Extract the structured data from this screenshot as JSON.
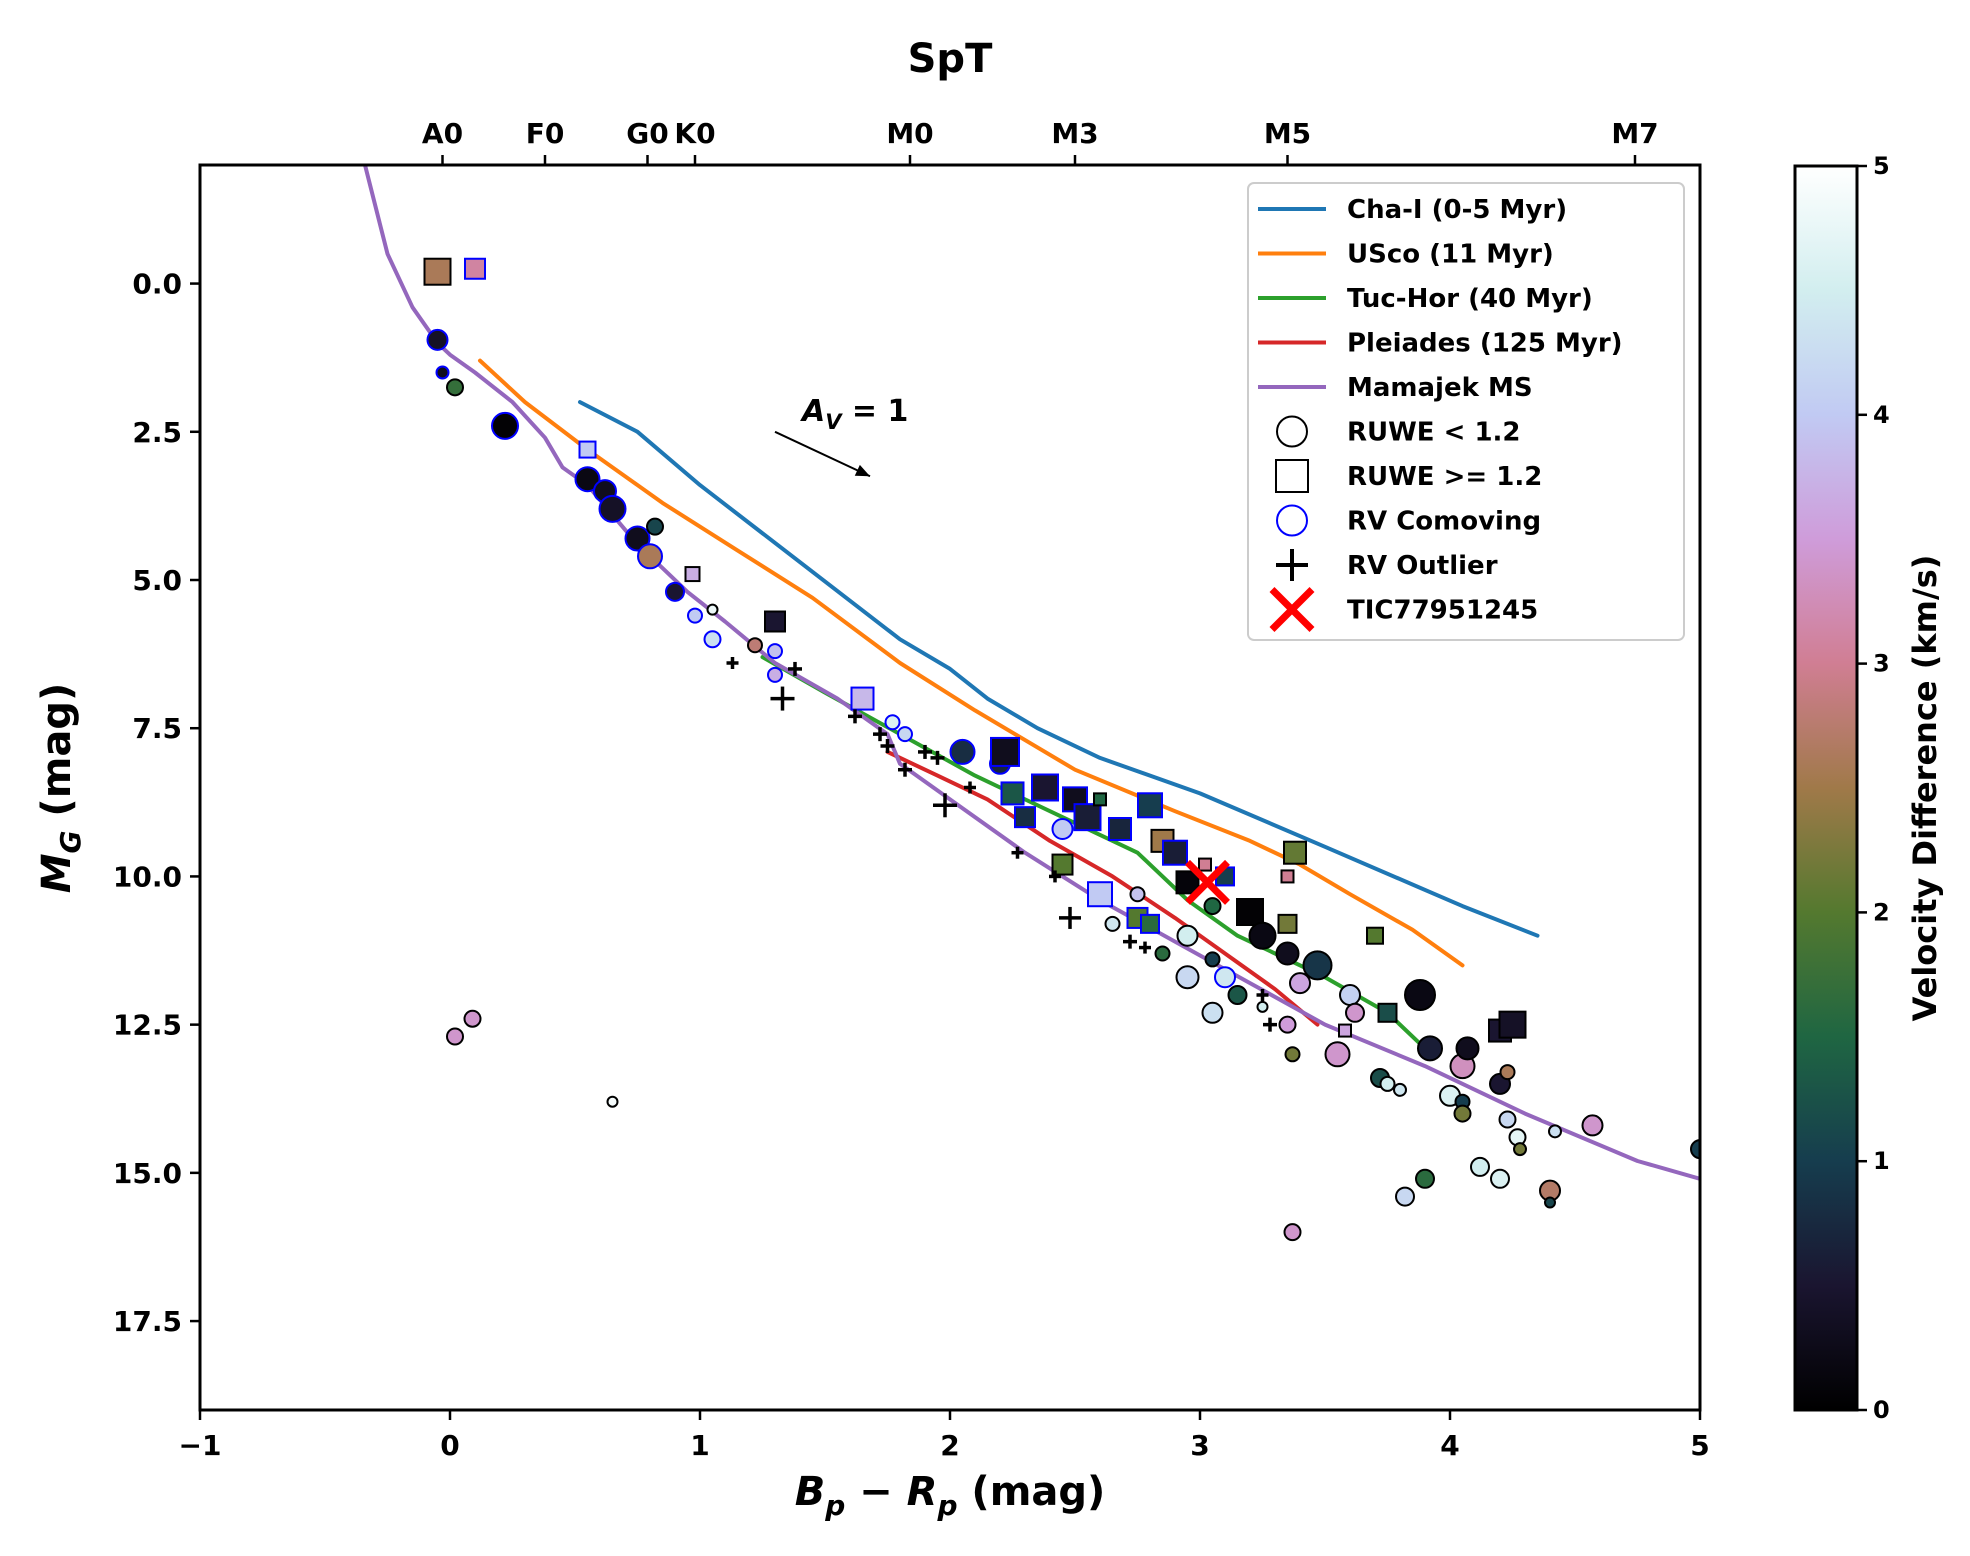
{
  "chart_data": {
    "type": "scatter",
    "xlabel": "B_p − R_p (mag)",
    "ylabel": "M_G (mag)",
    "top_axis_title": "SpT",
    "xlim": [
      -1,
      5
    ],
    "ylim": [
      19,
      -2
    ],
    "x_ticks": [
      -1,
      0,
      1,
      2,
      3,
      4,
      5
    ],
    "x_tick_labels": [
      "−1",
      "0",
      "1",
      "2",
      "3",
      "4",
      "5"
    ],
    "y_ticks": [
      0,
      2.5,
      5,
      7.5,
      10,
      12.5,
      15,
      17.5
    ],
    "y_tick_labels": [
      "0.0",
      "2.5",
      "5.0",
      "7.5",
      "10.0",
      "12.5",
      "15.0",
      "17.5"
    ],
    "spt_ticks": [
      {
        "label": "A0",
        "x": -0.03
      },
      {
        "label": "F0",
        "x": 0.38
      },
      {
        "label": "G0",
        "x": 0.79
      },
      {
        "label": "K0",
        "x": 0.98
      },
      {
        "label": "M0",
        "x": 1.84
      },
      {
        "label": "M3",
        "x": 2.5
      },
      {
        "label": "M5",
        "x": 3.35
      },
      {
        "label": "M7",
        "x": 4.74
      }
    ],
    "colorbar": {
      "label": "Velocity Difference (km/s)",
      "min": 0,
      "max": 5,
      "ticks": [
        0,
        1,
        2,
        3,
        4,
        5
      ],
      "tick_labels": [
        "0",
        "1",
        "2",
        "3",
        "4",
        "5"
      ]
    },
    "series": [
      {
        "name": "Cha-I (0-5 Myr)",
        "color": "#1f77b4",
        "x": [
          0.52,
          0.75,
          1.0,
          1.4,
          1.8,
          2.0,
          2.15,
          2.35,
          2.6,
          3.0,
          3.5,
          4.05,
          4.35
        ],
        "y": [
          2.0,
          2.5,
          3.4,
          4.7,
          6.0,
          6.5,
          7.0,
          7.5,
          8.0,
          8.6,
          9.5,
          10.5,
          11.0
        ]
      },
      {
        "name": "USco (11 Myr)",
        "color": "#ff7f0e",
        "x": [
          0.12,
          0.3,
          0.55,
          0.85,
          1.15,
          1.45,
          1.8,
          2.1,
          2.5,
          2.9,
          3.2,
          3.4,
          3.6,
          3.85,
          4.05
        ],
        "y": [
          1.3,
          2.0,
          2.8,
          3.7,
          4.5,
          5.3,
          6.4,
          7.2,
          8.2,
          8.9,
          9.4,
          9.8,
          10.3,
          10.9,
          11.5
        ]
      },
      {
        "name": "Tuc-Hor (40 Myr)",
        "color": "#2ca02c",
        "x": [
          1.25,
          1.5,
          1.8,
          2.1,
          2.5,
          2.75,
          2.95,
          3.15,
          3.5,
          3.75,
          3.9
        ],
        "y": [
          6.3,
          6.9,
          7.6,
          8.3,
          9.1,
          9.6,
          10.4,
          11.0,
          11.7,
          12.3,
          12.9
        ]
      },
      {
        "name": "Pleiades (125 Myr)",
        "color": "#d62728",
        "x": [
          1.75,
          1.95,
          2.15,
          2.4,
          2.65,
          2.9,
          3.1,
          3.3,
          3.47
        ],
        "y": [
          7.9,
          8.3,
          8.7,
          9.4,
          10.0,
          10.7,
          11.3,
          11.9,
          12.5
        ]
      },
      {
        "name": "Mamajek MS",
        "color": "#9467bd",
        "x": [
          -0.34,
          -0.25,
          -0.15,
          -0.05,
          0.0,
          0.1,
          0.25,
          0.38,
          0.45,
          0.55,
          0.65,
          0.75,
          0.85,
          0.95,
          1.1,
          1.3,
          1.55,
          1.75,
          1.8,
          2.0,
          2.3,
          2.6,
          2.9,
          3.2,
          3.5,
          3.9,
          4.3,
          4.75,
          5.0
        ],
        "y": [
          -2.0,
          -0.5,
          0.4,
          1.0,
          1.2,
          1.5,
          2.0,
          2.6,
          3.1,
          3.4,
          3.9,
          4.4,
          4.8,
          5.2,
          5.7,
          6.4,
          7.0,
          7.6,
          8.1,
          8.7,
          9.6,
          10.4,
          11.1,
          11.8,
          12.5,
          13.2,
          14.0,
          14.8,
          15.1
        ]
      }
    ],
    "points": [
      {
        "x": -0.05,
        "y": -0.2,
        "m": "s",
        "v": 2.6,
        "s": 26
      },
      {
        "x": 0.1,
        "y": -0.25,
        "m": "s",
        "v": 3.1,
        "s": 20,
        "rv": true
      },
      {
        "x": -0.05,
        "y": 0.95,
        "m": "o",
        "v": 0.4,
        "s": 20,
        "rv": true
      },
      {
        "x": -0.03,
        "y": 1.5,
        "m": "o",
        "v": 0.3,
        "s": 12,
        "rv": true
      },
      {
        "x": 0.02,
        "y": 1.75,
        "m": "o",
        "v": 1.7,
        "s": 16
      },
      {
        "x": 0.22,
        "y": 2.4,
        "m": "o",
        "v": 0.05,
        "s": 26,
        "rv": true
      },
      {
        "x": 0.55,
        "y": 2.8,
        "m": "s",
        "v": 4.0,
        "s": 16,
        "rv": true
      },
      {
        "x": 0.55,
        "y": 3.3,
        "m": "o",
        "v": 0.2,
        "s": 24,
        "rv": true
      },
      {
        "x": 0.62,
        "y": 3.5,
        "m": "o",
        "v": 0.3,
        "s": 22,
        "rv": true
      },
      {
        "x": 0.65,
        "y": 3.8,
        "m": "o",
        "v": 0.4,
        "s": 26,
        "rv": true
      },
      {
        "x": 0.75,
        "y": 4.3,
        "m": "o",
        "v": 0.3,
        "s": 24,
        "rv": true
      },
      {
        "x": 0.82,
        "y": 4.1,
        "m": "o",
        "v": 1.1,
        "s": 16
      },
      {
        "x": 0.8,
        "y": 4.6,
        "m": "o",
        "v": 2.6,
        "s": 24,
        "rv": true
      },
      {
        "x": 0.9,
        "y": 5.2,
        "m": "o",
        "v": 0.5,
        "s": 18,
        "rv": true
      },
      {
        "x": 0.97,
        "y": 4.9,
        "m": "s",
        "v": 3.7,
        "s": 14
      },
      {
        "x": 0.98,
        "y": 5.6,
        "m": "o",
        "v": 4.0,
        "s": 14,
        "rv": true
      },
      {
        "x": 1.05,
        "y": 5.5,
        "m": "o",
        "v": 4.8,
        "s": 10
      },
      {
        "x": 1.05,
        "y": 6.0,
        "m": "o",
        "v": 4.3,
        "s": 16,
        "rv": true
      },
      {
        "x": 1.22,
        "y": 6.1,
        "m": "o",
        "v": 2.8,
        "s": 14
      },
      {
        "x": 1.3,
        "y": 5.7,
        "m": "s",
        "v": 0.5,
        "s": 20
      },
      {
        "x": 1.3,
        "y": 6.2,
        "m": "o",
        "v": 3.9,
        "s": 14,
        "rv": true
      },
      {
        "x": 1.3,
        "y": 6.6,
        "m": "o",
        "v": 3.7,
        "s": 14,
        "rv": true
      },
      {
        "x": 1.65,
        "y": 7.0,
        "m": "s",
        "v": 3.8,
        "s": 22,
        "rv": true
      },
      {
        "x": 1.77,
        "y": 7.4,
        "m": "o",
        "v": 4.6,
        "s": 14,
        "rv": true
      },
      {
        "x": 1.82,
        "y": 7.6,
        "m": "o",
        "v": 4.2,
        "s": 14,
        "rv": true
      },
      {
        "x": 2.05,
        "y": 7.9,
        "m": "o",
        "v": 0.8,
        "s": 24,
        "rv": true
      },
      {
        "x": 2.2,
        "y": 8.1,
        "m": "o",
        "v": 0.7,
        "s": 20,
        "rv": true
      },
      {
        "x": 2.22,
        "y": 7.9,
        "m": "s",
        "v": 0.3,
        "s": 28,
        "rv": true
      },
      {
        "x": 2.25,
        "y": 8.6,
        "m": "s",
        "v": 1.3,
        "s": 22,
        "rv": true
      },
      {
        "x": 2.3,
        "y": 9.0,
        "m": "s",
        "v": 0.8,
        "s": 20,
        "rv": true
      },
      {
        "x": 2.38,
        "y": 8.5,
        "m": "s",
        "v": 0.5,
        "s": 26,
        "rv": true
      },
      {
        "x": 2.45,
        "y": 9.2,
        "m": "o",
        "v": 4.0,
        "s": 20,
        "rv": true
      },
      {
        "x": 2.5,
        "y": 8.7,
        "m": "s",
        "v": 0.3,
        "s": 24,
        "rv": true
      },
      {
        "x": 2.55,
        "y": 9.0,
        "m": "s",
        "v": 0.6,
        "s": 26,
        "rv": true
      },
      {
        "x": 2.45,
        "y": 9.8,
        "m": "s",
        "v": 2.0,
        "s": 20
      },
      {
        "x": 2.6,
        "y": 8.7,
        "m": "s",
        "v": 1.5,
        "s": 12
      },
      {
        "x": 2.68,
        "y": 9.2,
        "m": "s",
        "v": 0.7,
        "s": 22,
        "rv": true
      },
      {
        "x": 2.8,
        "y": 8.8,
        "m": "s",
        "v": 1.0,
        "s": 24,
        "rv": true
      },
      {
        "x": 2.85,
        "y": 9.4,
        "m": "s",
        "v": 2.5,
        "s": 22
      },
      {
        "x": 2.6,
        "y": 10.3,
        "m": "s",
        "v": 4.0,
        "s": 24,
        "rv": true
      },
      {
        "x": 2.75,
        "y": 10.3,
        "m": "o",
        "v": 3.9,
        "s": 14
      },
      {
        "x": 2.9,
        "y": 9.6,
        "m": "s",
        "v": 0.6,
        "s": 24,
        "rv": true
      },
      {
        "x": 2.95,
        "y": 10.1,
        "m": "s",
        "v": 0.1,
        "s": 22
      },
      {
        "x": 2.65,
        "y": 10.8,
        "m": "o",
        "v": 4.4,
        "s": 14
      },
      {
        "x": 2.75,
        "y": 10.7,
        "m": "s",
        "v": 2.0,
        "s": 20,
        "rv": true
      },
      {
        "x": 2.8,
        "y": 10.8,
        "m": "s",
        "v": 1.6,
        "s": 18,
        "rv": true
      },
      {
        "x": 2.85,
        "y": 11.3,
        "m": "o",
        "v": 1.6,
        "s": 14
      },
      {
        "x": 2.95,
        "y": 11.0,
        "m": "o",
        "v": 4.5,
        "s": 20
      },
      {
        "x": 2.95,
        "y": 11.7,
        "m": "o",
        "v": 4.2,
        "s": 22
      },
      {
        "x": 3.05,
        "y": 10.5,
        "m": "o",
        "v": 1.5,
        "s": 16
      },
      {
        "x": 3.05,
        "y": 11.4,
        "m": "o",
        "v": 1.0,
        "s": 14
      },
      {
        "x": 3.1,
        "y": 10.0,
        "m": "s",
        "v": 1.0,
        "s": 18,
        "rv": true
      },
      {
        "x": 3.1,
        "y": 11.7,
        "m": "o",
        "v": 4.4,
        "s": 20,
        "rv": true
      },
      {
        "x": 3.05,
        "y": 12.3,
        "m": "o",
        "v": 4.3,
        "s": 20
      },
      {
        "x": 3.15,
        "y": 12.0,
        "m": "o",
        "v": 1.3,
        "s": 18
      },
      {
        "x": 3.2,
        "y": 10.6,
        "m": "s",
        "v": 0.05,
        "s": 26
      },
      {
        "x": 3.25,
        "y": 11.0,
        "m": "o",
        "v": 0.2,
        "s": 26
      },
      {
        "x": 3.25,
        "y": 12.2,
        "m": "o",
        "v": 4.5,
        "s": 10
      },
      {
        "x": 3.35,
        "y": 10.8,
        "m": "s",
        "v": 2.2,
        "s": 18
      },
      {
        "x": 3.35,
        "y": 11.3,
        "m": "o",
        "v": 0.3,
        "s": 22
      },
      {
        "x": 3.4,
        "y": 11.8,
        "m": "o",
        "v": 3.6,
        "s": 20
      },
      {
        "x": 3.35,
        "y": 12.5,
        "m": "o",
        "v": 3.5,
        "s": 16
      },
      {
        "x": 3.37,
        "y": 13.0,
        "m": "o",
        "v": 2.2,
        "s": 14
      },
      {
        "x": 3.35,
        "y": 10.0,
        "m": "s",
        "v": 3.0,
        "s": 12
      },
      {
        "x": 3.02,
        "y": 9.8,
        "m": "s",
        "v": 3.0,
        "s": 12
      },
      {
        "x": 3.38,
        "y": 9.6,
        "m": "s",
        "v": 2.1,
        "s": 22
      },
      {
        "x": 3.47,
        "y": 11.5,
        "m": "o",
        "v": 0.9,
        "s": 28
      },
      {
        "x": 3.55,
        "y": 13.0,
        "m": "o",
        "v": 3.4,
        "s": 24
      },
      {
        "x": 3.6,
        "y": 12.0,
        "m": "o",
        "v": 4.1,
        "s": 20
      },
      {
        "x": 3.62,
        "y": 12.3,
        "m": "o",
        "v": 3.4,
        "s": 18
      },
      {
        "x": 3.58,
        "y": 12.6,
        "m": "s",
        "v": 3.6,
        "s": 12
      },
      {
        "x": 3.7,
        "y": 11.0,
        "m": "s",
        "v": 2.0,
        "s": 16
      },
      {
        "x": 3.72,
        "y": 13.4,
        "m": "o",
        "v": 1.2,
        "s": 18
      },
      {
        "x": 3.75,
        "y": 12.3,
        "m": "s",
        "v": 1.2,
        "s": 18
      },
      {
        "x": 3.75,
        "y": 13.5,
        "m": "o",
        "v": 4.5,
        "s": 14
      },
      {
        "x": 3.8,
        "y": 13.6,
        "m": "o",
        "v": 4.4,
        "s": 12
      },
      {
        "x": 3.88,
        "y": 12.0,
        "m": "o",
        "v": 0.2,
        "s": 30
      },
      {
        "x": 3.92,
        "y": 12.9,
        "m": "o",
        "v": 0.6,
        "s": 24
      },
      {
        "x": 4.0,
        "y": 13.7,
        "m": "o",
        "v": 4.6,
        "s": 20
      },
      {
        "x": 4.05,
        "y": 13.2,
        "m": "o",
        "v": 3.3,
        "s": 24
      },
      {
        "x": 4.05,
        "y": 13.8,
        "m": "o",
        "v": 1.0,
        "s": 14
      },
      {
        "x": 4.05,
        "y": 14.0,
        "m": "o",
        "v": 2.2,
        "s": 16
      },
      {
        "x": 4.07,
        "y": 12.9,
        "m": "o",
        "v": 0.3,
        "s": 22
      },
      {
        "x": 4.2,
        "y": 12.6,
        "m": "s",
        "v": 0.5,
        "s": 22
      },
      {
        "x": 4.25,
        "y": 12.5,
        "m": "s",
        "v": 0.4,
        "s": 26
      },
      {
        "x": 4.2,
        "y": 13.5,
        "m": "o",
        "v": 0.5,
        "s": 20
      },
      {
        "x": 4.23,
        "y": 13.3,
        "m": "o",
        "v": 2.6,
        "s": 14
      },
      {
        "x": 4.23,
        "y": 14.1,
        "m": "o",
        "v": 4.2,
        "s": 16
      },
      {
        "x": 4.27,
        "y": 14.4,
        "m": "o",
        "v": 4.7,
        "s": 16
      },
      {
        "x": 4.28,
        "y": 14.6,
        "m": "o",
        "v": 2.2,
        "s": 12
      },
      {
        "x": 4.42,
        "y": 14.3,
        "m": "o",
        "v": 4.3,
        "s": 12
      },
      {
        "x": 4.57,
        "y": 14.2,
        "m": "o",
        "v": 3.4,
        "s": 20
      },
      {
        "x": 5.0,
        "y": 14.6,
        "m": "o",
        "v": 1.0,
        "s": 18
      },
      {
        "x": 3.82,
        "y": 15.4,
        "m": "o",
        "v": 4.2,
        "s": 18
      },
      {
        "x": 3.9,
        "y": 15.1,
        "m": "o",
        "v": 1.6,
        "s": 18
      },
      {
        "x": 4.12,
        "y": 14.9,
        "m": "o",
        "v": 4.5,
        "s": 18
      },
      {
        "x": 4.2,
        "y": 15.1,
        "m": "o",
        "v": 4.6,
        "s": 18
      },
      {
        "x": 4.4,
        "y": 15.3,
        "m": "o",
        "v": 2.7,
        "s": 20
      },
      {
        "x": 4.4,
        "y": 15.5,
        "m": "o",
        "v": 1.1,
        "s": 10
      },
      {
        "x": 3.37,
        "y": 16.0,
        "m": "o",
        "v": 3.4,
        "s": 16
      },
      {
        "x": 0.02,
        "y": 12.7,
        "m": "o",
        "v": 3.4,
        "s": 16
      },
      {
        "x": 0.09,
        "y": 12.4,
        "m": "o",
        "v": 3.4,
        "s": 16
      },
      {
        "x": 0.65,
        "y": 13.8,
        "m": "o",
        "v": 4.9,
        "s": 10
      },
      {
        "x": 1.13,
        "y": 6.4,
        "m": "+",
        "s": 12
      },
      {
        "x": 1.33,
        "y": 7.0,
        "m": "+",
        "s": 24
      },
      {
        "x": 1.38,
        "y": 6.5,
        "m": "+",
        "s": 14
      },
      {
        "x": 1.62,
        "y": 7.3,
        "m": "+",
        "s": 14
      },
      {
        "x": 1.72,
        "y": 7.6,
        "m": "+",
        "s": 14
      },
      {
        "x": 1.75,
        "y": 7.8,
        "m": "+",
        "s": 14
      },
      {
        "x": 1.82,
        "y": 8.2,
        "m": "+",
        "s": 14
      },
      {
        "x": 1.9,
        "y": 7.9,
        "m": "+",
        "s": 14
      },
      {
        "x": 1.95,
        "y": 8.0,
        "m": "+",
        "s": 14
      },
      {
        "x": 1.98,
        "y": 8.8,
        "m": "+",
        "s": 24
      },
      {
        "x": 2.08,
        "y": 8.5,
        "m": "+",
        "s": 12
      },
      {
        "x": 2.27,
        "y": 9.6,
        "m": "+",
        "s": 12
      },
      {
        "x": 2.42,
        "y": 10.0,
        "m": "+",
        "s": 12
      },
      {
        "x": 2.48,
        "y": 10.7,
        "m": "+",
        "s": 22
      },
      {
        "x": 2.72,
        "y": 11.1,
        "m": "+",
        "s": 14
      },
      {
        "x": 2.78,
        "y": 11.2,
        "m": "+",
        "s": 12
      },
      {
        "x": 3.25,
        "y": 12.0,
        "m": "+",
        "s": 12
      },
      {
        "x": 3.28,
        "y": 12.5,
        "m": "+",
        "s": 14
      }
    ],
    "target": {
      "label": "TIC77951245",
      "x": 3.03,
      "y": 10.1,
      "color": "#ff0000"
    },
    "annotation": {
      "text": "A_V = 1",
      "arrow_from": [
        1.3,
        2.5
      ],
      "arrow_to": [
        1.68,
        3.25
      ]
    },
    "legend": {
      "placement": "upper right",
      "entries": [
        {
          "label": "Cha-I (0-5 Myr)",
          "kind": "line",
          "color": "#1f77b4"
        },
        {
          "label": "USco (11 Myr)",
          "kind": "line",
          "color": "#ff7f0e"
        },
        {
          "label": "Tuc-Hor (40 Myr)",
          "kind": "line",
          "color": "#2ca02c"
        },
        {
          "label": "Pleiades (125 Myr)",
          "kind": "line",
          "color": "#d62728"
        },
        {
          "label": "Mamajek MS",
          "kind": "line",
          "color": "#9467bd"
        },
        {
          "label": "RUWE < 1.2",
          "kind": "circle",
          "color": "#000000"
        },
        {
          "label": "RUWE >= 1.2",
          "kind": "square",
          "color": "#000000"
        },
        {
          "label": "RV Comoving",
          "kind": "circle",
          "color": "#0000ff"
        },
        {
          "label": "RV Outlier",
          "kind": "plus",
          "color": "#000000"
        },
        {
          "label": "TIC77951245",
          "kind": "x",
          "color": "#ff0000"
        }
      ]
    }
  }
}
